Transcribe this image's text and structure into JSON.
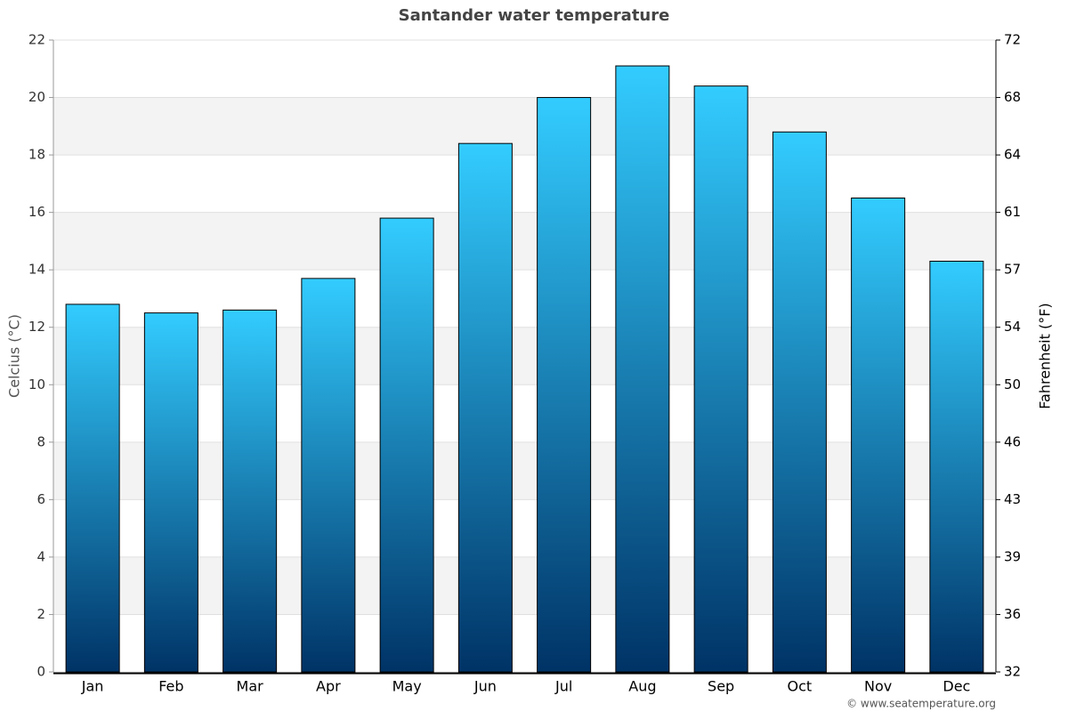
{
  "chart_data": {
    "type": "bar",
    "title": "Santander water temperature",
    "categories": [
      "Jan",
      "Feb",
      "Mar",
      "Apr",
      "May",
      "Jun",
      "Jul",
      "Aug",
      "Sep",
      "Oct",
      "Nov",
      "Dec"
    ],
    "values": [
      12.8,
      12.5,
      12.6,
      13.7,
      15.8,
      18.4,
      20.0,
      21.1,
      20.4,
      18.8,
      16.5,
      14.3
    ],
    "color_top": "#33ccff",
    "color_bottom": "#003366",
    "ylabel": "Celcius (°C)",
    "y2label": "Fahrenheit (°F)",
    "ylim": [
      0,
      22
    ],
    "yticks": [
      0,
      2,
      4,
      6,
      8,
      10,
      12,
      14,
      16,
      18,
      20,
      22
    ],
    "y2lim": [
      32,
      71.6
    ],
    "y2ticks": [
      32,
      {
        "value": 35.6,
        "label": "36"
      },
      {
        "value": 39.2,
        "label": "39"
      },
      {
        "value": 42.8,
        "label": "43"
      },
      {
        "value": 46.4,
        "label": "46"
      },
      50,
      {
        "value": 53.6,
        "label": "54"
      },
      {
        "value": 57.2,
        "label": "57"
      },
      {
        "value": 60.8,
        "label": "61"
      },
      {
        "value": 64.4,
        "label": "64"
      },
      68,
      {
        "value": 71.6,
        "label": "72"
      }
    ],
    "grid": true,
    "source": "© www.seatemperature.org"
  }
}
